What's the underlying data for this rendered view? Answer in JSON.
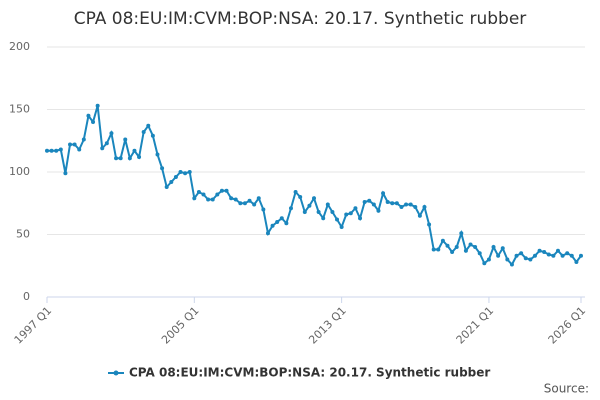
{
  "chart_data": {
    "type": "line",
    "title": "CPA 08:EU:IM:CVM:BOP:NSA: 20.17. Synthetic rubber",
    "source": "Source:",
    "categories": [
      "1997 Q1",
      null,
      null,
      null,
      null,
      null,
      null,
      null,
      null,
      null,
      null,
      null,
      null,
      null,
      null,
      null,
      null,
      null,
      null,
      null,
      null,
      null,
      null,
      null,
      null,
      null,
      null,
      null,
      null,
      null,
      null,
      null,
      "2005 Q1",
      null,
      null,
      null,
      null,
      null,
      null,
      null,
      null,
      null,
      null,
      null,
      null,
      null,
      null,
      null,
      null,
      null,
      null,
      null,
      null,
      null,
      null,
      null,
      null,
      null,
      null,
      null,
      null,
      null,
      null,
      null,
      "2013 Q1",
      null,
      null,
      null,
      null,
      null,
      null,
      null,
      null,
      null,
      null,
      null,
      null,
      null,
      null,
      null,
      null,
      null,
      null,
      null,
      null,
      null,
      null,
      null,
      null,
      null,
      null,
      null,
      null,
      null,
      null,
      null,
      "2021 Q1",
      null,
      null,
      null,
      null,
      null,
      null,
      null,
      null,
      null,
      null,
      null,
      null,
      null,
      null,
      null,
      null,
      null,
      null,
      null,
      "2026 Q1"
    ],
    "series": [
      {
        "name": "CPA 08:EU:IM:CVM:BOP:NSA: 20.17. Synthetic rubber",
        "color": "#1a86bd",
        "values": [
          117,
          117,
          117,
          118,
          99,
          122,
          122,
          118,
          126,
          145,
          140,
          153,
          119,
          123,
          131,
          111,
          111,
          126,
          111,
          117,
          112,
          132,
          137,
          129,
          114,
          103,
          88,
          92,
          96,
          100,
          99,
          100,
          79,
          84,
          82,
          78,
          78,
          82,
          85,
          85,
          79,
          78,
          75,
          75,
          77,
          74,
          79,
          70,
          51,
          57,
          60,
          63,
          59,
          71,
          84,
          80,
          68,
          73,
          79,
          68,
          63,
          74,
          68,
          62,
          56,
          66,
          67,
          71,
          63,
          76,
          77,
          74,
          69,
          83,
          76,
          75,
          75,
          72,
          74,
          74,
          72,
          65,
          72,
          58,
          38,
          38,
          45,
          41,
          36,
          40,
          51,
          37,
          42,
          40,
          35,
          27,
          30,
          40,
          33,
          39,
          30,
          26,
          33,
          35,
          31,
          30,
          33,
          37,
          36,
          34,
          33,
          37,
          33,
          35,
          33,
          28,
          33
        ]
      }
    ],
    "ylim": [
      0,
      200
    ],
    "yticks": [
      0,
      50,
      100,
      150,
      200
    ],
    "grid": true
  }
}
